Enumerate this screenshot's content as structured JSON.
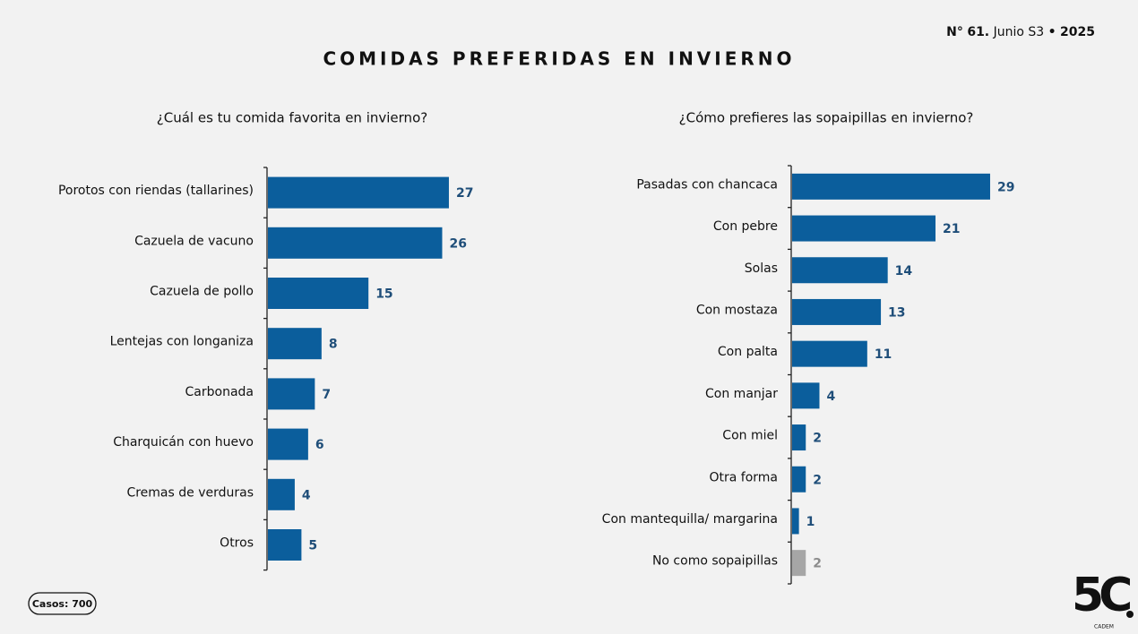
{
  "header": {
    "title": "COMIDAS PREFERIDAS EN INVIERNO",
    "issue_prefix": "N°",
    "issue_number": "61.",
    "issue_period": "Junio S3",
    "issue_separator": "•",
    "issue_year": "2025",
    "cases": "Casos: 700",
    "logo": "5C",
    "logo_caption": "CADEM"
  },
  "chart_data": [
    {
      "type": "bar",
      "orientation": "horizontal",
      "title": "¿Cuál es tu comida favorita en invierno?",
      "categories": [
        "Porotos con riendas (tallarines)",
        "Cazuela de vacuno",
        "Cazuela de pollo",
        "Lentejas con longaniza",
        "Carbonada",
        "Charquicán con huevo",
        "Cremas de verduras",
        "Otros"
      ],
      "values": [
        27,
        26,
        15,
        8,
        7,
        6,
        4,
        5
      ],
      "colors": [
        "#0b5e9c",
        "#0b5e9c",
        "#0b5e9c",
        "#0b5e9c",
        "#0b5e9c",
        "#0b5e9c",
        "#0b5e9c",
        "#0b5e9c"
      ]
    },
    {
      "type": "bar",
      "orientation": "horizontal",
      "title": "¿Cómo prefieres las sopaipillas en invierno?",
      "categories": [
        "Pasadas con chancaca",
        "Con pebre",
        "Solas",
        "Con mostaza",
        "Con palta",
        "Con manjar",
        "Con miel",
        "Otra forma",
        "Con mantequilla/ margarina",
        "No como sopaipillas"
      ],
      "values": [
        29,
        21,
        14,
        13,
        11,
        4,
        2,
        2,
        1,
        2
      ],
      "colors": [
        "#0b5e9c",
        "#0b5e9c",
        "#0b5e9c",
        "#0b5e9c",
        "#0b5e9c",
        "#0b5e9c",
        "#0b5e9c",
        "#0b5e9c",
        "#0b5e9c",
        "#a6a6a6"
      ]
    }
  ]
}
